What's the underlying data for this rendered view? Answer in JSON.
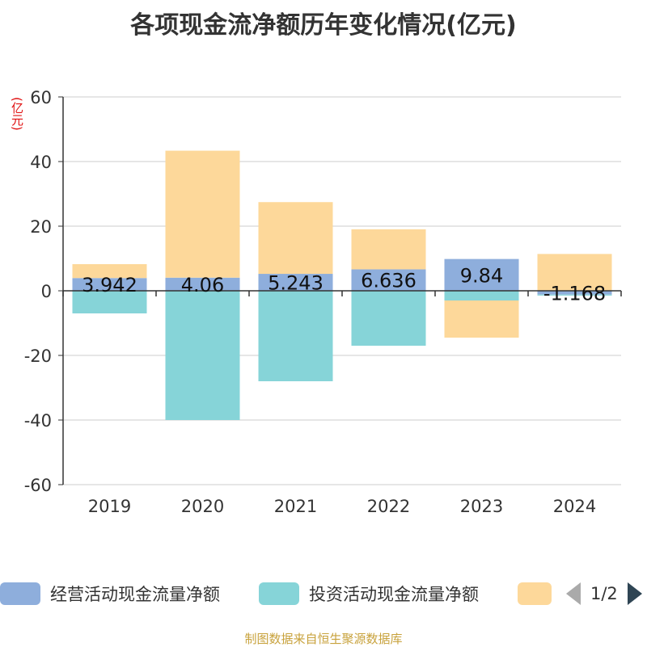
{
  "title": "各项现金流净额历年变化情况(亿元)",
  "unit": "(亿元)",
  "source": "制图数据来自恒生聚源数据库",
  "legend": {
    "items": [
      {
        "label": "经营活动现金流量净额",
        "color": "#8eaedc"
      },
      {
        "label": "投资活动现金流量净额",
        "color": "#86d4d8"
      },
      {
        "label": "",
        "color": "#fdd89a"
      }
    ],
    "page": "1/2"
  },
  "chart_data": {
    "type": "bar",
    "stacked": true,
    "categories": [
      "2019",
      "2020",
      "2021",
      "2022",
      "2023",
      "2024"
    ],
    "ylim": [
      -60,
      60
    ],
    "yticks": [
      60,
      40,
      20,
      0,
      -20,
      -40,
      -60
    ],
    "grid": true,
    "series": [
      {
        "name": "经营活动现金流量净额",
        "color": "#8eaedc",
        "values": [
          3.942,
          4.06,
          5.243,
          6.636,
          9.84,
          -1.168
        ],
        "labels": [
          "3.942",
          "4.06",
          "5.243",
          "6.636",
          "9.84",
          "-1.168"
        ]
      },
      {
        "name": "投资活动现金流量净额",
        "color": "#86d4d8",
        "values": [
          -7.0,
          -40.0,
          -28.0,
          -17.0,
          -3.0,
          -0.3
        ]
      },
      {
        "name": "",
        "color": "#fdd89a",
        "values": [
          4.3,
          39.3,
          22.2,
          12.4,
          -11.5,
          11.4
        ]
      }
    ]
  }
}
